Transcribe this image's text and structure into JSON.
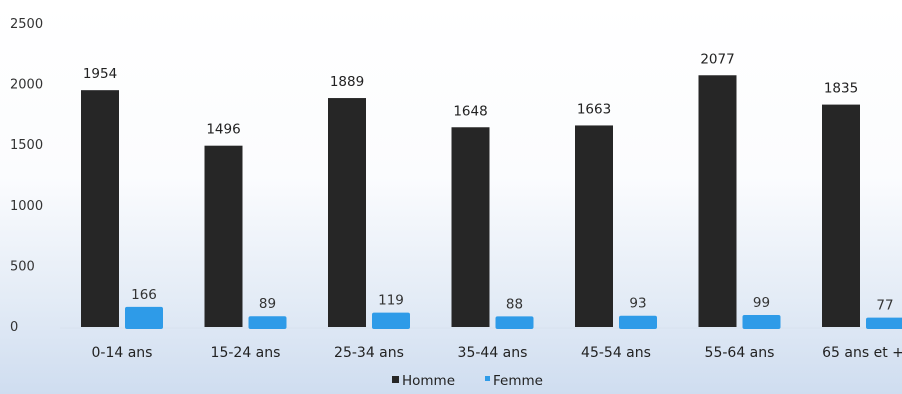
{
  "chart_data": {
    "type": "bar",
    "categories": [
      "0-14 ans",
      "15-24 ans",
      "25-34 ans",
      "35-44 ans",
      "45-54 ans",
      "55-64 ans",
      "65 ans et +"
    ],
    "series": [
      {
        "name": "Homme",
        "values": [
          1954,
          1496,
          1889,
          1648,
          1663,
          2077,
          1835
        ],
        "color": "#262626"
      },
      {
        "name": "Femme",
        "values": [
          166,
          89,
          119,
          88,
          93,
          99,
          77
        ],
        "color": "#2e9be8"
      }
    ],
    "yticks": [
      "0",
      "500",
      "1000",
      "1500",
      "2000",
      "2500"
    ],
    "ylim": [
      0,
      2500
    ],
    "title": "",
    "xlabel": "",
    "ylabel": "",
    "grid": false,
    "legend_position": "bottom-center"
  }
}
